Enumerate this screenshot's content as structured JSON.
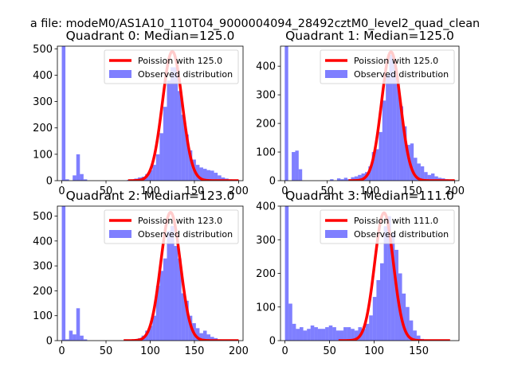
{
  "figure": {
    "suptitle": "a file: modeM0/AS1A10_110T04_9000004094_28492cztM0_level2_quad_clean"
  },
  "colors": {
    "hist_fill": "#0000ff",
    "hist_alpha": 0.5,
    "fit_line": "#ff0000",
    "axes": "#000000",
    "background": "#ffffff"
  },
  "chart_data": [
    {
      "type": "bar",
      "title": "Quadrant 0: Median=125.0",
      "xlim": [
        -5,
        205
      ],
      "ylim": [
        0,
        510
      ],
      "xticks": [
        0,
        50,
        100,
        150,
        200
      ],
      "yticks": [
        0,
        100,
        200,
        300,
        400,
        500
      ],
      "legend": {
        "location": "upper-right",
        "line_label": "Poission with 125.0",
        "bar_label": "Observed distribution"
      },
      "bin_width": 4.1,
      "bins": [
        [
          0,
          510
        ],
        [
          4.1,
          5
        ],
        [
          8.2,
          0
        ],
        [
          12.3,
          20
        ],
        [
          16.4,
          100
        ],
        [
          20.5,
          25
        ],
        [
          24.6,
          5
        ],
        [
          73.8,
          3
        ],
        [
          77.9,
          5
        ],
        [
          82,
          8
        ],
        [
          86.1,
          12
        ],
        [
          90.2,
          15
        ],
        [
          94.3,
          25
        ],
        [
          98.4,
          40
        ],
        [
          102.5,
          60
        ],
        [
          106.6,
          100
        ],
        [
          110.7,
          180
        ],
        [
          114.8,
          280
        ],
        [
          118.9,
          380
        ],
        [
          123,
          430
        ],
        [
          127.1,
          430
        ],
        [
          131.2,
          340
        ],
        [
          135.3,
          250
        ],
        [
          139.4,
          175
        ],
        [
          143.5,
          115
        ],
        [
          147.6,
          80
        ],
        [
          151.7,
          60
        ],
        [
          155.8,
          50
        ],
        [
          159.9,
          45
        ],
        [
          164,
          40
        ],
        [
          168.1,
          38
        ],
        [
          172.2,
          30
        ],
        [
          176.3,
          20
        ],
        [
          180.4,
          12
        ],
        [
          184.5,
          8
        ],
        [
          188.6,
          5
        ],
        [
          192.7,
          3
        ],
        [
          196.8,
          2
        ]
      ],
      "poisson": {
        "mean": 125.0,
        "peak": 490,
        "x_range": [
          75,
          200
        ]
      }
    },
    {
      "type": "bar",
      "title": "Quadrant 1: Median=125.0",
      "xlim": [
        -5,
        205
      ],
      "ylim": [
        0,
        470
      ],
      "xticks": [
        0,
        50,
        100,
        150,
        200
      ],
      "yticks": [
        0,
        100,
        200,
        300,
        400
      ],
      "legend": {
        "location": "upper-right",
        "line_label": "Poission with 125.0",
        "bar_label": "Observed distribution"
      },
      "bin_width": 4.1,
      "bins": [
        [
          0,
          470
        ],
        [
          4.1,
          0
        ],
        [
          8.2,
          100
        ],
        [
          12.3,
          105
        ],
        [
          16.4,
          40
        ],
        [
          20.5,
          0
        ],
        [
          53.3,
          5
        ],
        [
          57.4,
          0
        ],
        [
          61.5,
          8
        ],
        [
          65.6,
          5
        ],
        [
          69.7,
          10
        ],
        [
          73.8,
          5
        ],
        [
          77.9,
          12
        ],
        [
          82,
          15
        ],
        [
          86.1,
          20
        ],
        [
          90.2,
          25
        ],
        [
          94.3,
          30
        ],
        [
          98.4,
          50
        ],
        [
          102.5,
          100
        ],
        [
          106.6,
          110
        ],
        [
          110.7,
          170
        ],
        [
          114.8,
          280
        ],
        [
          118.9,
          370
        ],
        [
          123,
          440
        ],
        [
          127.1,
          420
        ],
        [
          131.2,
          340
        ],
        [
          135.3,
          260
        ],
        [
          139.4,
          190
        ],
        [
          143.5,
          125
        ],
        [
          147.6,
          130
        ],
        [
          151.7,
          80
        ],
        [
          155.8,
          60
        ],
        [
          159.9,
          50
        ],
        [
          164,
          30
        ],
        [
          168.1,
          20
        ],
        [
          172.2,
          25
        ],
        [
          176.3,
          15
        ],
        [
          180.4,
          10
        ],
        [
          184.5,
          8
        ],
        [
          188.6,
          5
        ]
      ],
      "poisson": {
        "mean": 125.0,
        "peak": 450,
        "x_range": [
          75,
          200
        ]
      }
    },
    {
      "type": "bar",
      "title": "Quadrant 2: Median=123.0",
      "xlim": [
        -5,
        205
      ],
      "ylim": [
        0,
        540
      ],
      "xticks": [
        0,
        50,
        100,
        150,
        200
      ],
      "yticks": [
        0,
        100,
        200,
        300,
        400,
        500
      ],
      "legend": {
        "location": "upper-right",
        "line_label": "Poission with 123.0",
        "bar_label": "Observed distribution"
      },
      "bin_width": 4.1,
      "bins": [
        [
          0,
          540
        ],
        [
          4.1,
          5
        ],
        [
          8.2,
          40
        ],
        [
          12.3,
          25
        ],
        [
          16.4,
          130
        ],
        [
          20.5,
          20
        ],
        [
          24.6,
          5
        ],
        [
          82,
          5
        ],
        [
          86.1,
          10
        ],
        [
          90.2,
          20
        ],
        [
          94.3,
          40
        ],
        [
          98.4,
          60
        ],
        [
          102.5,
          100
        ],
        [
          106.6,
          220
        ],
        [
          110.7,
          280
        ],
        [
          114.8,
          330
        ],
        [
          118.9,
          440
        ],
        [
          123,
          460
        ],
        [
          127.1,
          380
        ],
        [
          131.2,
          330
        ],
        [
          135.3,
          190
        ],
        [
          139.4,
          160
        ],
        [
          143.5,
          100
        ],
        [
          147.6,
          70
        ],
        [
          151.7,
          50
        ],
        [
          155.8,
          30
        ],
        [
          159.9,
          40
        ],
        [
          164,
          25
        ],
        [
          168.1,
          15
        ],
        [
          172.2,
          10
        ],
        [
          176.3,
          5
        ]
      ],
      "poisson": {
        "mean": 123.0,
        "peak": 515,
        "x_range": [
          70,
          200
        ]
      }
    },
    {
      "type": "bar",
      "title": "Quadrant 3: Median=111.0",
      "xlim": [
        -5,
        195
      ],
      "ylim": [
        0,
        400
      ],
      "xticks": [
        0,
        50,
        100,
        150
      ],
      "yticks": [
        0,
        100,
        200,
        300,
        400
      ],
      "legend": {
        "location": "upper-right",
        "line_label": "Poission with 111.0",
        "bar_label": "Observed distribution"
      },
      "bin_width": 4.1,
      "bins": [
        [
          0,
          400
        ],
        [
          4.1,
          110
        ],
        [
          8.2,
          50
        ],
        [
          12.3,
          35
        ],
        [
          16.4,
          40
        ],
        [
          20.5,
          30
        ],
        [
          24.6,
          35
        ],
        [
          28.7,
          45
        ],
        [
          32.8,
          40
        ],
        [
          36.9,
          35
        ],
        [
          41,
          35
        ],
        [
          45.1,
          40
        ],
        [
          49.2,
          45
        ],
        [
          53.3,
          40
        ],
        [
          57.4,
          30
        ],
        [
          61.5,
          30
        ],
        [
          65.6,
          40
        ],
        [
          69.7,
          40
        ],
        [
          73.8,
          35
        ],
        [
          77.9,
          30
        ],
        [
          82,
          40
        ],
        [
          86.1,
          35
        ],
        [
          90.2,
          50
        ],
        [
          94.3,
          75
        ],
        [
          98.4,
          130
        ],
        [
          102.5,
          180
        ],
        [
          106.6,
          230
        ],
        [
          110.7,
          340
        ],
        [
          114.8,
          370
        ],
        [
          118.9,
          320
        ],
        [
          123,
          270
        ],
        [
          127.1,
          200
        ],
        [
          131.2,
          140
        ],
        [
          135.3,
          100
        ],
        [
          139.4,
          60
        ],
        [
          143.5,
          30
        ],
        [
          147.6,
          15
        ],
        [
          151.7,
          5
        ],
        [
          155.8,
          3
        ]
      ],
      "poisson": {
        "mean": 111.0,
        "peak": 380,
        "x_range": [
          60,
          185
        ]
      }
    }
  ]
}
